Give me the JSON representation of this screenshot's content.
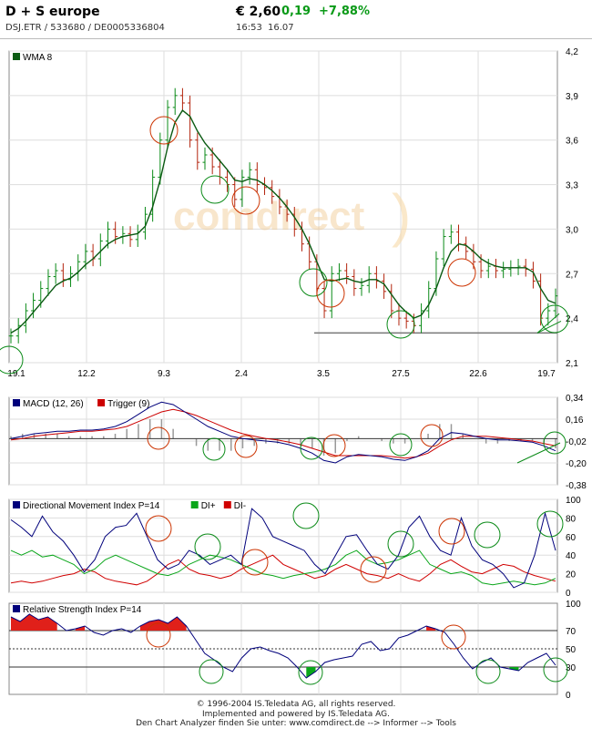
{
  "header": {
    "name": "D + S europe",
    "ids": "DSJ.ETR  /  533680  /  DE0005336804",
    "price": "€ 2,60",
    "change": "0,19",
    "change_pct": "+7,88%",
    "time": "16:53",
    "date": "16.07"
  },
  "colors": {
    "accent_up": "#0a9a17",
    "macd": "#00007b",
    "trigger": "#cc0000",
    "watermark": "#f0c890",
    "watermark_bracket": "#f7d9a8"
  },
  "watermark": "comdirect",
  "footer": {
    "line1": "© 1996-2004 IS.Teledata AG, all rights reserved.",
    "line2": "Implemented and powered by IS.Teledata AG.",
    "line3": "Den Chart Analyzer finden Sie unter: www.comdirect.de --> Informer --> Tools"
  },
  "chart_data": [
    {
      "type": "ohlc",
      "legend": [
        "WMA 8"
      ],
      "x_ticks": [
        "19.1",
        "12.2",
        "9.3",
        "2.4",
        "3.5",
        "27.5",
        "22.6",
        "19.7"
      ],
      "y_ticks": [
        "4,2",
        "3,9",
        "3,6",
        "3,3",
        "3,0",
        "2,7",
        "2,4",
        "2,1"
      ],
      "ylim": [
        2.1,
        4.2
      ],
      "support_level": 2.3,
      "close": [
        2.28,
        2.35,
        2.45,
        2.52,
        2.6,
        2.68,
        2.72,
        2.66,
        2.7,
        2.78,
        2.85,
        2.8,
        2.92,
        3.0,
        2.95,
        2.97,
        2.93,
        2.98,
        3.1,
        3.35,
        3.6,
        3.82,
        3.9,
        3.85,
        3.6,
        3.45,
        3.5,
        3.42,
        3.35,
        3.3,
        3.2,
        3.35,
        3.4,
        3.3,
        3.28,
        3.22,
        3.15,
        3.1,
        3.0,
        2.9,
        2.78,
        2.6,
        2.45,
        2.7,
        2.72,
        2.68,
        2.6,
        2.62,
        2.7,
        2.65,
        2.58,
        2.45,
        2.4,
        2.38,
        2.35,
        2.45,
        2.6,
        2.8,
        2.95,
        2.98,
        2.9,
        2.85,
        2.78,
        2.72,
        2.75,
        2.72,
        2.73,
        2.74,
        2.75,
        2.73,
        2.65,
        2.4,
        2.45,
        2.55
      ],
      "wma8": [
        2.3,
        2.33,
        2.38,
        2.44,
        2.5,
        2.56,
        2.62,
        2.65,
        2.67,
        2.71,
        2.76,
        2.8,
        2.85,
        2.9,
        2.93,
        2.95,
        2.96,
        2.97,
        3.02,
        3.15,
        3.33,
        3.55,
        3.72,
        3.8,
        3.76,
        3.66,
        3.58,
        3.52,
        3.46,
        3.4,
        3.33,
        3.32,
        3.34,
        3.33,
        3.3,
        3.26,
        3.21,
        3.15,
        3.08,
        3.0,
        2.9,
        2.78,
        2.66,
        2.65,
        2.66,
        2.67,
        2.65,
        2.64,
        2.66,
        2.66,
        2.63,
        2.56,
        2.49,
        2.44,
        2.4,
        2.42,
        2.49,
        2.6,
        2.74,
        2.85,
        2.9,
        2.89,
        2.85,
        2.8,
        2.77,
        2.75,
        2.74,
        2.74,
        2.74,
        2.74,
        2.71,
        2.6,
        2.52,
        2.5
      ]
    },
    {
      "type": "line",
      "legend": [
        "MACD (12, 26)",
        "Trigger (9)"
      ],
      "y_ticks": [
        "0,34",
        "0,16",
        "-0,02",
        "-0,20",
        "-0,38"
      ],
      "ylim": [
        -0.38,
        0.34
      ],
      "series": [
        {
          "name": "MACD (12, 26)",
          "values": [
            0.0,
            0.02,
            0.04,
            0.05,
            0.06,
            0.06,
            0.07,
            0.07,
            0.08,
            0.1,
            0.14,
            0.2,
            0.26,
            0.3,
            0.28,
            0.22,
            0.16,
            0.1,
            0.06,
            0.02,
            0.0,
            -0.01,
            -0.02,
            -0.03,
            -0.05,
            -0.08,
            -0.12,
            -0.18,
            -0.2,
            -0.15,
            -0.13,
            -0.14,
            -0.15,
            -0.17,
            -0.18,
            -0.15,
            -0.1,
            0.0,
            0.05,
            0.04,
            0.02,
            0.0,
            -0.01,
            -0.01,
            -0.02,
            -0.03,
            -0.06,
            -0.1
          ]
        },
        {
          "name": "Trigger (9)",
          "values": [
            -0.01,
            0.0,
            0.02,
            0.03,
            0.04,
            0.05,
            0.06,
            0.06,
            0.07,
            0.08,
            0.1,
            0.14,
            0.18,
            0.22,
            0.24,
            0.22,
            0.19,
            0.15,
            0.11,
            0.07,
            0.04,
            0.02,
            0.0,
            -0.01,
            -0.03,
            -0.05,
            -0.08,
            -0.11,
            -0.14,
            -0.14,
            -0.14,
            -0.14,
            -0.14,
            -0.15,
            -0.16,
            -0.15,
            -0.12,
            -0.06,
            -0.01,
            0.02,
            0.02,
            0.02,
            0.01,
            0.0,
            -0.01,
            -0.02,
            -0.04,
            -0.06
          ]
        }
      ]
    },
    {
      "type": "line",
      "legend": [
        "Directional Movement Index P=14",
        "DI+",
        "DI-"
      ],
      "y_ticks": [
        "100",
        "80",
        "60",
        "40",
        "20",
        "0"
      ],
      "ylim": [
        0,
        100
      ],
      "series": [
        {
          "name": "Directional Movement Index P=14",
          "values": [
            78,
            70,
            60,
            82,
            65,
            55,
            40,
            22,
            35,
            60,
            70,
            72,
            85,
            60,
            35,
            25,
            30,
            45,
            40,
            30,
            35,
            40,
            30,
            90,
            80,
            60,
            55,
            50,
            45,
            30,
            20,
            40,
            60,
            62,
            45,
            30,
            25,
            40,
            70,
            82,
            60,
            45,
            40,
            80,
            50,
            35,
            30,
            20,
            5,
            10,
            40,
            85,
            45
          ]
        },
        {
          "name": "DI+",
          "values": [
            45,
            40,
            45,
            38,
            40,
            35,
            30,
            20,
            25,
            35,
            40,
            35,
            30,
            25,
            20,
            18,
            22,
            30,
            35,
            40,
            38,
            35,
            30,
            25,
            20,
            18,
            15,
            18,
            20,
            22,
            25,
            30,
            40,
            45,
            35,
            30,
            32,
            35,
            40,
            45,
            30,
            25,
            20,
            22,
            18,
            10,
            8,
            10,
            12,
            10,
            8,
            10,
            15
          ]
        },
        {
          "name": "DI-",
          "values": [
            10,
            12,
            10,
            12,
            15,
            18,
            20,
            25,
            22,
            15,
            12,
            10,
            8,
            12,
            20,
            30,
            35,
            25,
            20,
            18,
            15,
            18,
            25,
            30,
            35,
            40,
            30,
            25,
            20,
            15,
            18,
            25,
            30,
            25,
            20,
            18,
            15,
            20,
            15,
            12,
            20,
            30,
            35,
            28,
            22,
            20,
            25,
            30,
            28,
            22,
            18,
            15,
            12
          ]
        }
      ]
    },
    {
      "type": "line",
      "legend": [
        "Relative Strength Index P=14"
      ],
      "y_ticks": [
        "100",
        "70",
        "50",
        "30",
        "0"
      ],
      "ylim": [
        0,
        100
      ],
      "reference_lines": [
        70,
        50,
        30
      ],
      "series": [
        {
          "name": "Relative Strength Index P=14",
          "values": [
            85,
            80,
            88,
            82,
            85,
            78,
            70,
            72,
            75,
            68,
            65,
            70,
            72,
            68,
            75,
            80,
            82,
            78,
            85,
            75,
            60,
            45,
            38,
            30,
            25,
            40,
            50,
            52,
            48,
            45,
            40,
            30,
            18,
            25,
            35,
            38,
            40,
            42,
            55,
            58,
            48,
            50,
            62,
            65,
            70,
            75,
            72,
            68,
            55,
            40,
            28,
            35,
            40,
            30,
            28,
            26,
            35,
            40,
            45,
            32
          ]
        }
      ]
    }
  ]
}
